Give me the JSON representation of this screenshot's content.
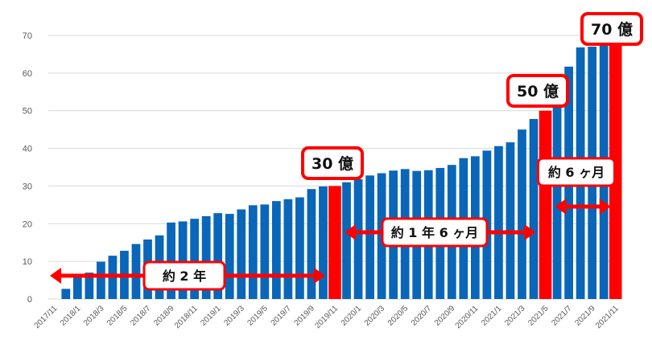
{
  "chart_data": {
    "type": "bar",
    "title": "",
    "xlabel": "",
    "ylabel": "",
    "ylim": [
      0,
      70
    ],
    "yticks": [
      "0",
      "10",
      "20",
      "30",
      "40",
      "50",
      "60",
      "70"
    ],
    "grid": true,
    "categories": [
      "2017/11",
      "2017/12",
      "2018/1",
      "2018/2",
      "2018/3",
      "2018/4",
      "2018/5",
      "2018/6",
      "2018/7",
      "2018/8",
      "2018/9",
      "2018/10",
      "2018/11",
      "2018/12",
      "2019/1",
      "2019/2",
      "2019/3",
      "2019/4",
      "2019/5",
      "2019/6",
      "2019/7",
      "2019/8",
      "2019/9",
      "2019/10",
      "2019/11",
      "2019/12",
      "2020/1",
      "2020/2",
      "2020/3",
      "2020/4",
      "2020/5",
      "2020/6",
      "2020/7",
      "2020/8",
      "2020/9",
      "2020/10",
      "2020/11",
      "2020/12",
      "2021/1",
      "2021/2",
      "2021/3",
      "2021/4",
      "2021/5",
      "2021/6",
      "2021/7",
      "2021/8",
      "2021/9",
      "2021/10",
      "2021/11"
    ],
    "xtick_labels": [
      "2017/11",
      "2018/1",
      "2018/3",
      "2018/5",
      "2018/7",
      "2018/9",
      "2018/11",
      "2019/1",
      "2019/3",
      "2019/5",
      "2019/7",
      "2019/9",
      "2019/11",
      "2020/1",
      "2020/3",
      "2020/5",
      "2020/7",
      "2020/9",
      "2020/11",
      "2021/1",
      "2021/3",
      "2021/5",
      "2021/7",
      "2021/9",
      "2021/11"
    ],
    "values": [
      0,
      2.7,
      6.2,
      7.0,
      9.9,
      11.5,
      12.8,
      14.6,
      15.8,
      16.9,
      20.3,
      20.6,
      21.3,
      22.0,
      22.8,
      22.6,
      23.8,
      24.9,
      25.1,
      26.0,
      26.5,
      27.0,
      29.2,
      29.9,
      30.0,
      31.0,
      31.8,
      32.8,
      33.4,
      34.1,
      34.5,
      34.0,
      34.2,
      34.8,
      35.6,
      37.4,
      37.9,
      39.4,
      40.6,
      41.6,
      45.0,
      47.8,
      50.0,
      56.6,
      61.7,
      66.8,
      67.0,
      71.0,
      71.0
    ],
    "bar_color": "#0a66b8",
    "highlight_color": "#ff0000",
    "milestones": [
      {
        "index": 24,
        "label": "30 億"
      },
      {
        "index": 42,
        "label": "50 億"
      },
      {
        "index": 48,
        "label": "70 億"
      }
    ],
    "periods": [
      {
        "from": 0,
        "to": 24,
        "label": "約 2 年"
      },
      {
        "from": 24,
        "to": 42,
        "label": "約 1 年 6 ヶ月"
      },
      {
        "from": 42,
        "to": 48,
        "label": "約 6 ヶ月"
      }
    ]
  }
}
